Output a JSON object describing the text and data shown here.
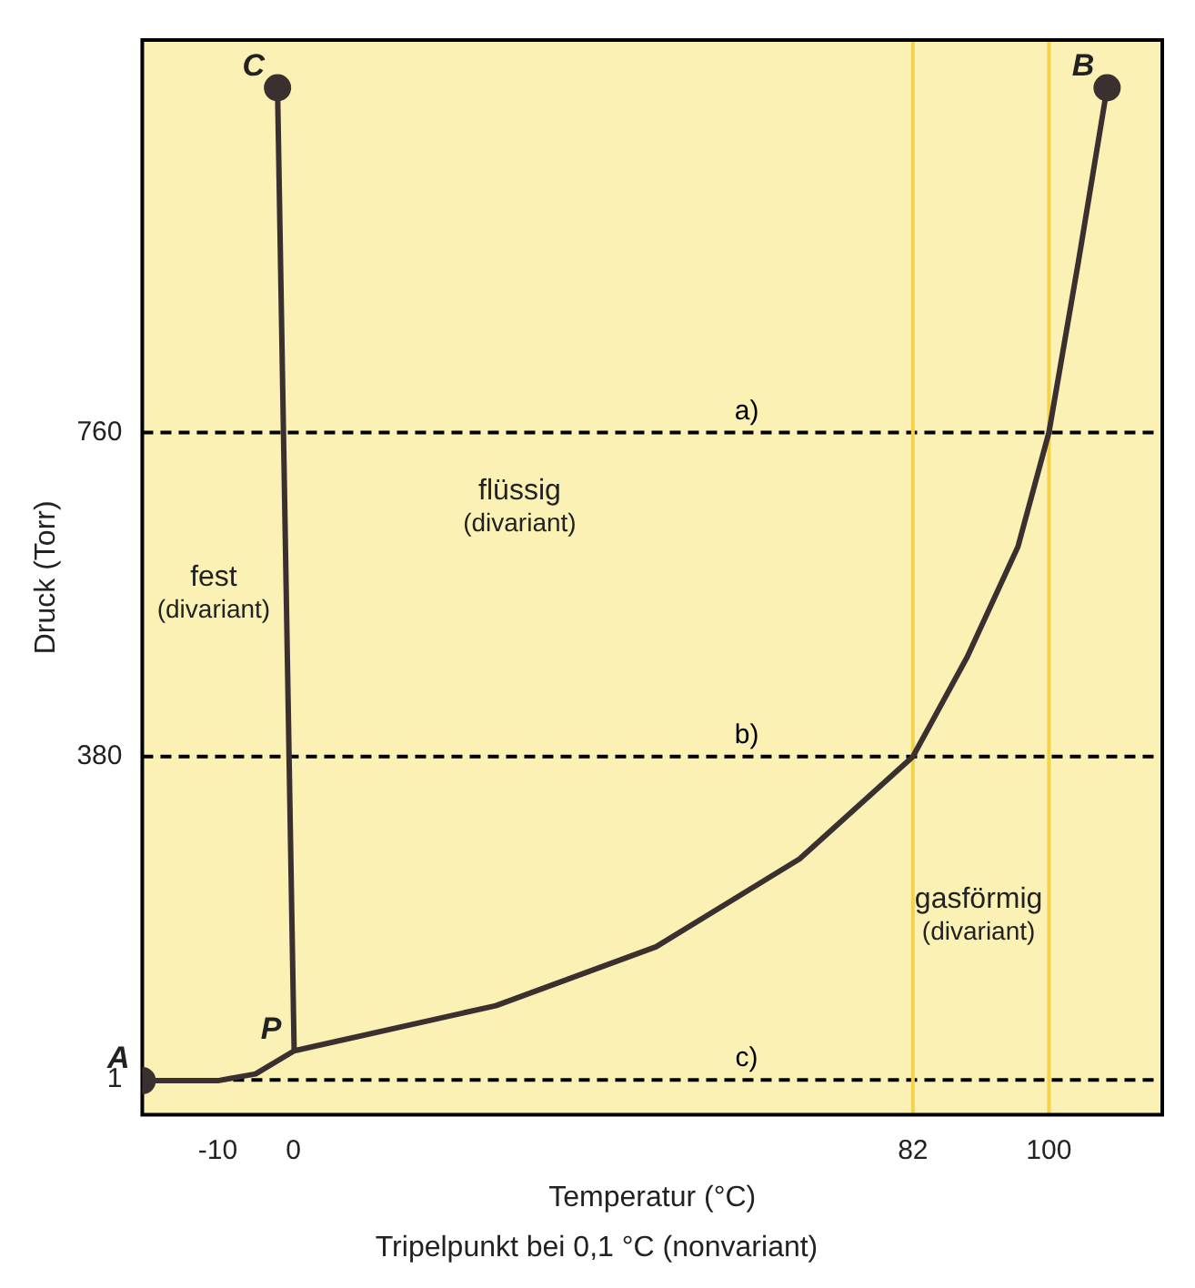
{
  "chart_data": {
    "type": "line",
    "xlabel": "Temperatur (°C)",
    "ylabel": "Druck (Torr)",
    "xlim": [
      -20,
      115
    ],
    "ylim": [
      -40,
      1220
    ],
    "xticks": [
      -10,
      0,
      82,
      100
    ],
    "yticks": [
      1,
      380,
      760
    ],
    "grid": false,
    "legend": false,
    "marker": "none",
    "line_style": "solid",
    "series": [
      {
        "color": "#3a3030",
        "x": [
          -20,
          -10,
          -5,
          0.1,
          26.8,
          48,
          67,
          82,
          89.2,
          95.9,
          100,
          103.9,
          107.7
        ],
        "values": [
          0,
          0,
          8,
          35,
          88,
          157,
          260,
          380,
          497,
          626,
          760,
          960,
          1164
        ]
      },
      {
        "color": "#3a3030",
        "x": [
          -2.1,
          0.1
        ],
        "values": [
          1164,
          35
        ]
      },
      {
        "type": "scatter",
        "marker": "circle",
        "color": "#3a3030",
        "x": [
          -20,
          -2.1,
          107.7
        ],
        "values": [
          0,
          1164,
          1164
        ]
      }
    ],
    "ref_lines": [
      {
        "axis": "y",
        "value": 760,
        "label": "a)",
        "color": "#000000",
        "line_style": "dashed"
      },
      {
        "axis": "y",
        "value": 380,
        "label": "b)",
        "color": "#000000",
        "line_style": "dashed"
      },
      {
        "axis": "y",
        "value": 1,
        "label": "c)",
        "color": "#000000",
        "line_style": "dashed"
      },
      {
        "axis": "x",
        "value": 82,
        "color": "#f2d24a",
        "line_style": "solid"
      },
      {
        "axis": "x",
        "value": 100,
        "color": "#f2d24a",
        "line_style": "solid"
      }
    ],
    "annotations": [
      "fest\n(divariant)",
      "flüssig\n(divariant)",
      "gasförmig\n(divariant)",
      {
        "text": "A",
        "x": -20,
        "y": 0
      },
      {
        "text": "C",
        "x": -2.1,
        "y": 1164
      },
      {
        "text": "B",
        "x": 107.7,
        "y": 1164
      },
      {
        "text": "P",
        "x": 0.1,
        "y": 35
      },
      "Tripelpunkt bei 0,1 °C (nonvariant)"
    ]
  }
}
